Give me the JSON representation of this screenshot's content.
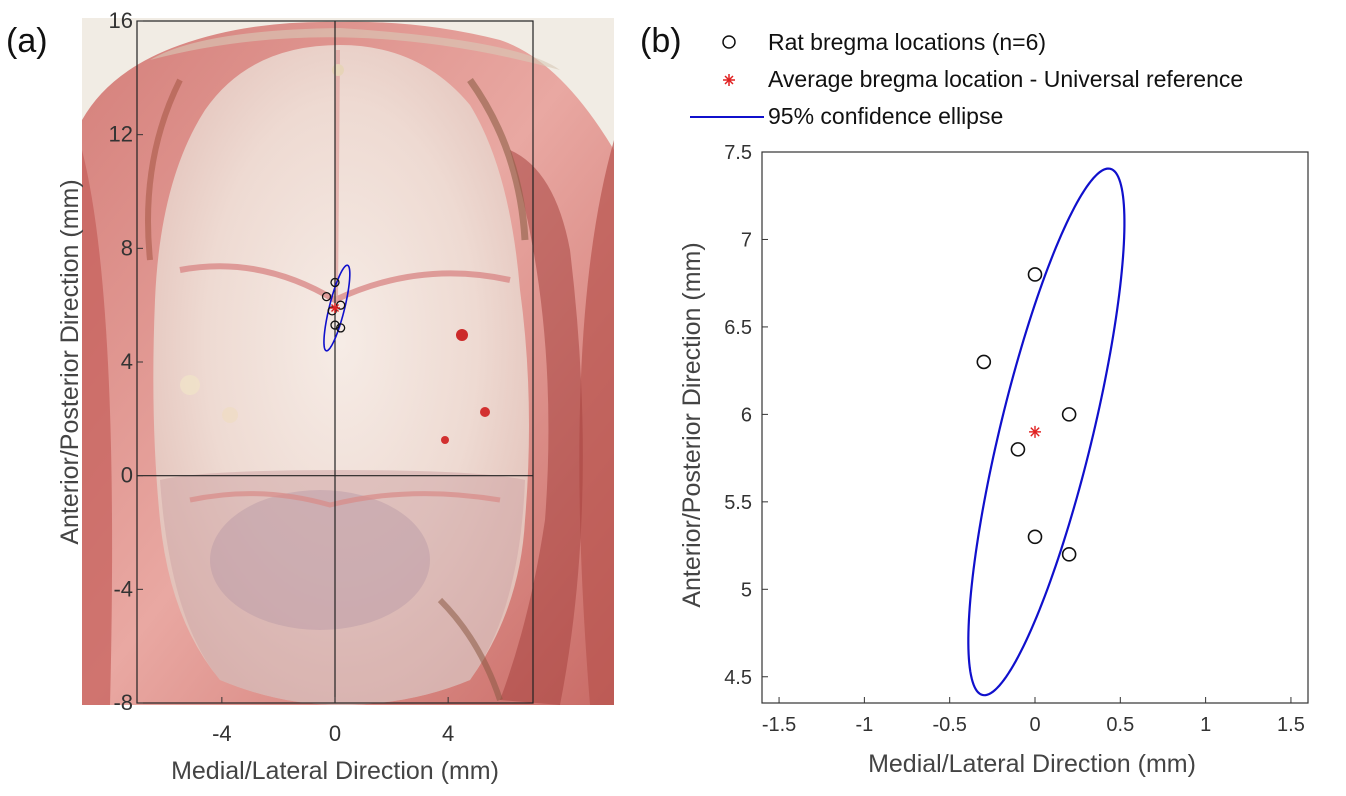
{
  "figure": {
    "colors": {
      "ellipse": "#1010cc",
      "mean": "#e02020",
      "points": "#111111",
      "axes": "#333333"
    }
  },
  "panel_a": {
    "label": "(a)",
    "xlabel": "Medial/Lateral Direction (mm)",
    "ylabel": "Anterior/Posterior Direction (mm)",
    "x_ticks": [
      "-4",
      "0",
      "4"
    ],
    "y_ticks": [
      "16",
      "12",
      "8",
      "4",
      "0",
      "-4",
      "-8"
    ]
  },
  "panel_b": {
    "label": "(b)",
    "legend": {
      "points": "Rat bregma locations (n=6)",
      "mean": "Average bregma location - Universal reference",
      "ellipse": "95% confidence ellipse"
    }
  },
  "chart_data": [
    {
      "type": "scatter",
      "title": "(a)",
      "description_kind": "photo overlay",
      "xlabel": "Medial/Lateral Direction (mm)",
      "ylabel": "Anterior/Posterior Direction (mm)",
      "xlim": [
        -7,
        7
      ],
      "ylim": [
        -8,
        16
      ],
      "x_ticks": [
        -4,
        0,
        4
      ],
      "y_ticks": [
        -8,
        -4,
        0,
        4,
        8,
        12,
        16
      ],
      "series": [
        {
          "name": "Rat bregma locations (n=6)",
          "x": [
            0,
            -0.3,
            0.2,
            -0.1,
            0,
            0.2
          ],
          "y": [
            6.8,
            6.3,
            6.0,
            5.8,
            5.3,
            5.2
          ]
        },
        {
          "name": "Average bregma location - Universal reference",
          "x": [
            0
          ],
          "y": [
            5.9
          ]
        }
      ],
      "ellipse": {
        "name": "95% confidence ellipse",
        "cx": 0.0667,
        "cy": 5.9,
        "rx": 0.27,
        "ry": 1.55,
        "rotation_deg": -14
      }
    },
    {
      "type": "scatter",
      "title": "(b)",
      "xlabel": "Medial/Lateral Direction (mm)",
      "ylabel": "Anterior/Posterior Direction (mm)",
      "xlim": [
        -1.6,
        1.6
      ],
      "ylim": [
        4.35,
        7.5
      ],
      "x_ticks": [
        -1.5,
        -1,
        -0.5,
        0,
        0.5,
        1,
        1.5
      ],
      "y_ticks": [
        4.5,
        5,
        5.5,
        6,
        6.5,
        7,
        7.5
      ],
      "series": [
        {
          "name": "Rat bregma locations (n=6)",
          "x": [
            0,
            -0.3,
            0.2,
            -0.1,
            0,
            0.2
          ],
          "y": [
            6.8,
            6.3,
            6.0,
            5.8,
            5.3,
            5.2
          ]
        },
        {
          "name": "Average bregma location - Universal reference",
          "x": [
            0
          ],
          "y": [
            5.9
          ]
        }
      ],
      "ellipse": {
        "name": "95% confidence ellipse",
        "cx": 0.0667,
        "cy": 5.9,
        "rx": 0.27,
        "ry": 1.55,
        "rotation_deg": -14
      }
    }
  ]
}
